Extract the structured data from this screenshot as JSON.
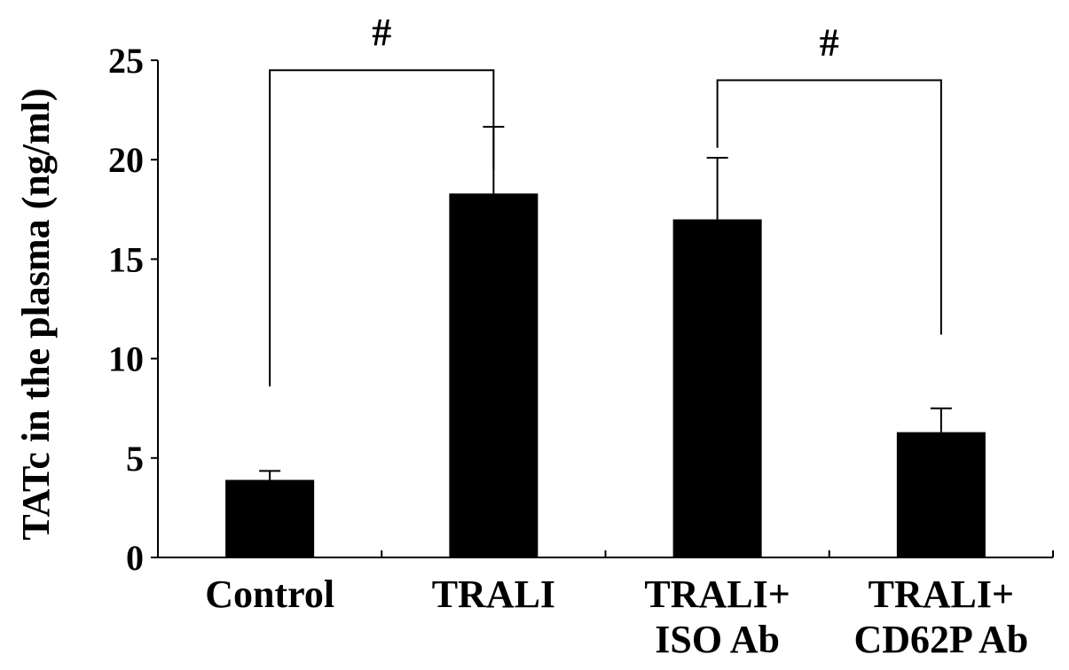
{
  "chart_data": {
    "type": "bar",
    "title": "",
    "xlabel": "",
    "ylabel": "TATc in the plasma (ng/ml)",
    "ylim": [
      0,
      25
    ],
    "yticks": [
      0,
      5,
      10,
      15,
      20,
      25
    ],
    "categories": [
      [
        "Control"
      ],
      [
        "TRALI"
      ],
      [
        "TRALI+",
        "ISO Ab"
      ],
      [
        "TRALI+",
        "CD62P Ab"
      ]
    ],
    "values": [
      3.9,
      18.3,
      17.0,
      6.3
    ],
    "error_upper": [
      0.45,
      3.35,
      3.1,
      1.2
    ],
    "significance": [
      {
        "from": 0,
        "to": 1,
        "label": "#",
        "bracket_y": 24.5,
        "left_drop": 8.6,
        "right_drop": 19.5
      },
      {
        "from": 2,
        "to": 3,
        "label": "#",
        "bracket_y": 24.0,
        "left_drop": 20.6,
        "right_drop": 11.2
      }
    ],
    "bar_color": "#000000",
    "grid": false,
    "legend": "none"
  }
}
